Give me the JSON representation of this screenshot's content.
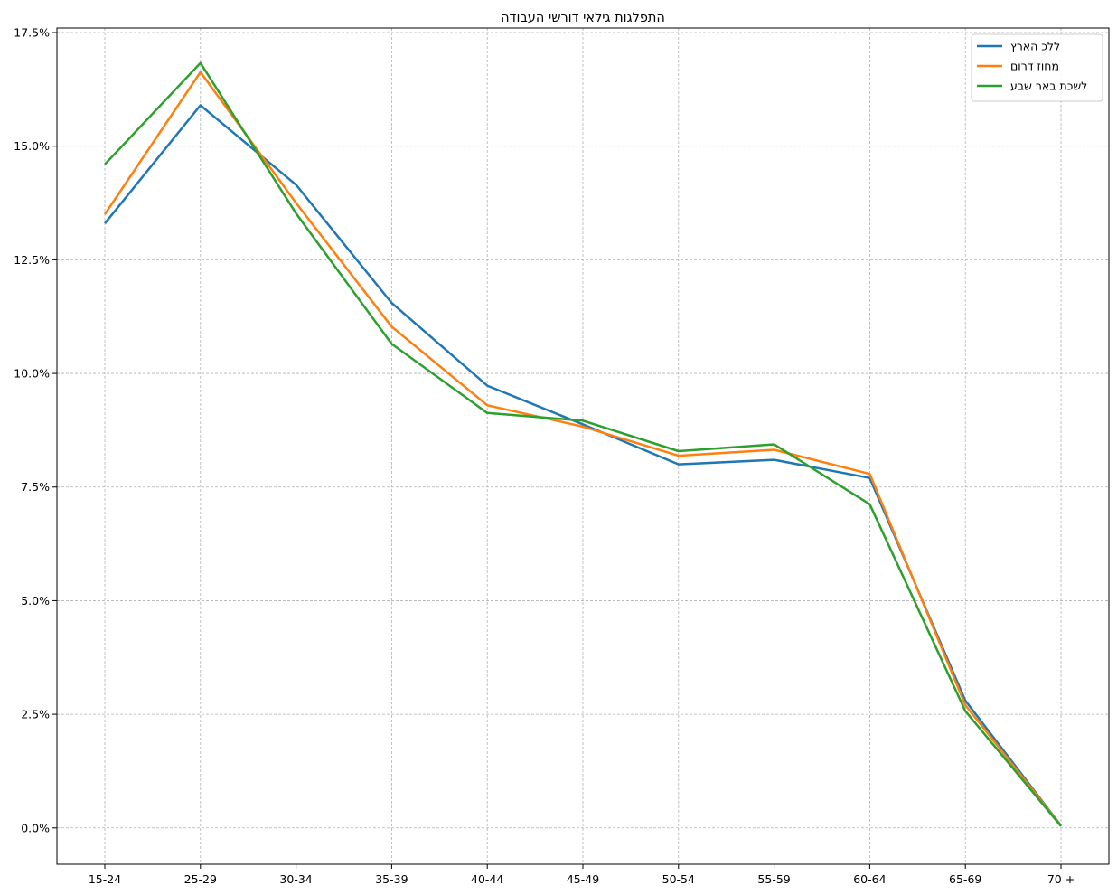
{
  "chart_data": {
    "type": "line",
    "title": "התפלגות גילאי דורשי העבודה",
    "xlabel": "",
    "ylabel": "",
    "categories": [
      "15-24",
      "25-29",
      "30-34",
      "35-39",
      "40-44",
      "45-49",
      "50-54",
      "55-59",
      "60-64",
      "65-69",
      "70 +"
    ],
    "ylim": [
      -0.8,
      17.6
    ],
    "yticks": [
      0.0,
      2.5,
      5.0,
      7.5,
      10.0,
      12.5,
      15.0,
      17.5
    ],
    "ytick_labels": [
      "0.0%",
      "2.5%",
      "5.0%",
      "7.5%",
      "10.0%",
      "12.5%",
      "15.0%",
      "17.5%"
    ],
    "grid": true,
    "legend_position": "top-right",
    "series": [
      {
        "name": "ללכ הארץ",
        "color": "#1f77b4",
        "values": [
          13.3,
          15.9,
          14.15,
          11.55,
          9.73,
          8.88,
          8.0,
          8.1,
          7.7,
          2.8,
          0.05
        ]
      },
      {
        "name": "מחוז דרום",
        "color": "#ff7f0e",
        "values": [
          13.5,
          16.63,
          13.75,
          11.03,
          9.3,
          8.83,
          8.19,
          8.32,
          7.79,
          2.7,
          0.05
        ]
      },
      {
        "name": "לשכת באר שבע",
        "color": "#2ca02c",
        "values": [
          14.6,
          16.83,
          13.52,
          10.65,
          9.13,
          8.96,
          8.29,
          8.44,
          7.12,
          2.57,
          0.04
        ]
      }
    ]
  }
}
